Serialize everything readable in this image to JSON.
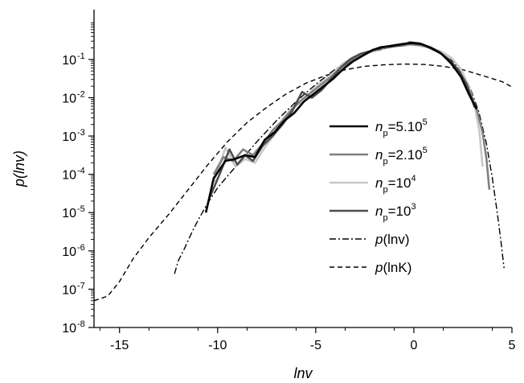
{
  "chart_data": {
    "type": "line",
    "title": "",
    "xlabel": "lnv",
    "ylabel": "p(lnv)",
    "xlim": [
      -16.3,
      5.0
    ],
    "ylim_log10": [
      -8,
      0.3
    ],
    "y_scale": "log",
    "grid": false,
    "legend_position": "right",
    "x_ticks": [
      -15,
      -10,
      -5,
      0,
      5
    ],
    "x_tick_labels": [
      "-15",
      "-10",
      "-5",
      "0",
      "5"
    ],
    "y_ticks_log10": [
      -8,
      -7,
      -6,
      -5,
      -4,
      -3,
      -2,
      -1
    ],
    "y_tick_bases": [
      "10",
      "10",
      "10",
      "10",
      "10",
      "10",
      "10",
      "10"
    ],
    "y_tick_exps": [
      "-8",
      "-7",
      "-6",
      "-5",
      "-4",
      "-3",
      "-2",
      "-1"
    ],
    "series": [
      {
        "name": "n_p=5.10^5",
        "legend": {
          "base": "n",
          "sub": "p",
          "rest": "=5.10",
          "sup": "5"
        },
        "color": "#000000",
        "width": 2.6,
        "dash": "",
        "points": [
          [
            -10.6,
            -5.0
          ],
          [
            -10.2,
            -4.1
          ],
          [
            -9.6,
            -3.65
          ],
          [
            -9.1,
            -3.6
          ],
          [
            -8.6,
            -3.5
          ],
          [
            -8.1,
            -3.55
          ],
          [
            -7.6,
            -3.1
          ],
          [
            -7.1,
            -2.9
          ],
          [
            -6.6,
            -2.6
          ],
          [
            -6.1,
            -2.4
          ],
          [
            -5.6,
            -2.1
          ],
          [
            -5.1,
            -1.9
          ],
          [
            -4.6,
            -1.7
          ],
          [
            -4.1,
            -1.5
          ],
          [
            -3.6,
            -1.25
          ],
          [
            -3.1,
            -1.05
          ],
          [
            -2.6,
            -0.9
          ],
          [
            -2.1,
            -0.75
          ],
          [
            -1.6,
            -0.68
          ],
          [
            -1.1,
            -0.64
          ],
          [
            -0.6,
            -0.6
          ],
          [
            -0.1,
            -0.57
          ],
          [
            0.4,
            -0.6
          ],
          [
            0.9,
            -0.7
          ],
          [
            1.4,
            -0.85
          ],
          [
            1.9,
            -1.1
          ],
          [
            2.4,
            -1.45
          ],
          [
            2.8,
            -1.9
          ],
          [
            3.2,
            -2.3
          ]
        ]
      },
      {
        "name": "n_p=2.10^5",
        "legend": {
          "base": "n",
          "sub": "p",
          "rest": "=2.10",
          "sup": "5"
        },
        "color": "#808080",
        "width": 2.6,
        "dash": "",
        "points": [
          [
            -10.2,
            -4.0
          ],
          [
            -9.7,
            -3.55
          ],
          [
            -9.2,
            -3.65
          ],
          [
            -8.7,
            -3.35
          ],
          [
            -8.2,
            -3.5
          ],
          [
            -7.7,
            -3.2
          ],
          [
            -7.2,
            -2.85
          ],
          [
            -6.7,
            -2.6
          ],
          [
            -6.2,
            -2.3
          ],
          [
            -5.7,
            -2.05
          ],
          [
            -5.2,
            -1.85
          ],
          [
            -4.7,
            -1.65
          ],
          [
            -4.2,
            -1.45
          ],
          [
            -3.7,
            -1.2
          ],
          [
            -3.2,
            -1.05
          ],
          [
            -2.7,
            -0.9
          ],
          [
            -2.2,
            -0.8
          ],
          [
            -1.7,
            -0.72
          ],
          [
            -1.2,
            -0.68
          ],
          [
            -0.7,
            -0.63
          ],
          [
            -0.2,
            -0.6
          ],
          [
            0.3,
            -0.62
          ],
          [
            0.8,
            -0.68
          ],
          [
            1.3,
            -0.8
          ],
          [
            1.8,
            -1.05
          ],
          [
            2.3,
            -1.35
          ],
          [
            2.8,
            -1.8
          ],
          [
            3.2,
            -2.3
          ],
          [
            3.5,
            -2.9
          ],
          [
            3.7,
            -3.6
          ],
          [
            3.85,
            -4.4
          ]
        ]
      },
      {
        "name": "n_p=10^4",
        "legend": {
          "base": "n",
          "sub": "p",
          "rest": "=10",
          "sup": "4"
        },
        "color": "#c8c8c8",
        "width": 2.6,
        "dash": "",
        "points": [
          [
            -10.2,
            -4.2
          ],
          [
            -9.6,
            -3.3
          ],
          [
            -9.1,
            -3.8
          ],
          [
            -8.6,
            -3.6
          ],
          [
            -8.1,
            -3.7
          ],
          [
            -7.6,
            -3.3
          ],
          [
            -7.1,
            -2.95
          ],
          [
            -6.6,
            -2.5
          ],
          [
            -6.1,
            -2.2
          ],
          [
            -5.6,
            -2.1
          ],
          [
            -5.1,
            -1.75
          ],
          [
            -4.6,
            -1.55
          ],
          [
            -4.1,
            -1.35
          ],
          [
            -3.6,
            -1.1
          ],
          [
            -3.1,
            -0.95
          ],
          [
            -2.6,
            -0.9
          ],
          [
            -2.1,
            -0.78
          ],
          [
            -1.6,
            -0.7
          ],
          [
            -1.1,
            -0.65
          ],
          [
            -0.6,
            -0.62
          ],
          [
            -0.1,
            -0.62
          ],
          [
            0.4,
            -0.65
          ],
          [
            0.9,
            -0.7
          ],
          [
            1.4,
            -0.8
          ],
          [
            1.9,
            -0.95
          ],
          [
            2.4,
            -1.25
          ],
          [
            2.8,
            -1.7
          ],
          [
            3.1,
            -2.2
          ],
          [
            3.35,
            -2.9
          ],
          [
            3.5,
            -3.8
          ]
        ]
      },
      {
        "name": "n_p=10^3",
        "legend": {
          "base": "n",
          "sub": "p",
          "rest": "=10",
          "sup": "3"
        },
        "color": "#4d4d4d",
        "width": 2.6,
        "dash": "",
        "points": [
          [
            -10.4,
            -4.6
          ],
          [
            -9.9,
            -4.0
          ],
          [
            -9.4,
            -3.35
          ],
          [
            -9.0,
            -3.75
          ],
          [
            -8.6,
            -3.5
          ],
          [
            -8.2,
            -3.65
          ],
          [
            -7.7,
            -3.25
          ],
          [
            -7.2,
            -3.0
          ],
          [
            -6.7,
            -2.7
          ],
          [
            -6.2,
            -2.35
          ],
          [
            -5.7,
            -1.85
          ],
          [
            -5.2,
            -2.0
          ],
          [
            -4.7,
            -1.8
          ],
          [
            -4.2,
            -1.5
          ],
          [
            -3.7,
            -1.2
          ],
          [
            -3.2,
            -0.98
          ],
          [
            -2.7,
            -0.85
          ],
          [
            -2.2,
            -0.78
          ],
          [
            -1.7,
            -0.68
          ],
          [
            -1.2,
            -0.66
          ],
          [
            -0.7,
            -0.64
          ],
          [
            -0.2,
            -0.55
          ],
          [
            0.3,
            -0.58
          ],
          [
            0.8,
            -0.7
          ],
          [
            1.3,
            -0.82
          ],
          [
            1.8,
            -1.0
          ],
          [
            2.3,
            -1.3
          ],
          [
            2.7,
            -1.65
          ],
          [
            3.1,
            -2.25
          ]
        ]
      },
      {
        "name": "p(lnv)",
        "legend": {
          "base": "p",
          "sub": "",
          "rest": "(lnv)",
          "sup": ""
        },
        "color": "#000000",
        "width": 1.4,
        "dash": "8,3,2,3",
        "points": [
          [
            -12.2,
            -6.6
          ],
          [
            -12.0,
            -6.25
          ],
          [
            -11.7,
            -5.95
          ],
          [
            -11.3,
            -5.5
          ],
          [
            -11.0,
            -5.2
          ],
          [
            -10.5,
            -4.75
          ],
          [
            -10.0,
            -4.35
          ],
          [
            -9.0,
            -3.75
          ],
          [
            -8.0,
            -3.15
          ],
          [
            -7.0,
            -2.6
          ],
          [
            -6.0,
            -2.1
          ],
          [
            -5.0,
            -1.65
          ],
          [
            -4.0,
            -1.25
          ],
          [
            -3.0,
            -0.95
          ],
          [
            -2.0,
            -0.78
          ],
          [
            -1.0,
            -0.66
          ],
          [
            0.0,
            -0.62
          ],
          [
            1.0,
            -0.72
          ],
          [
            2.0,
            -1.05
          ],
          [
            2.8,
            -1.65
          ],
          [
            3.3,
            -2.35
          ],
          [
            3.7,
            -3.2
          ],
          [
            4.0,
            -4.1
          ],
          [
            4.25,
            -5.0
          ],
          [
            4.45,
            -5.8
          ],
          [
            4.6,
            -6.45
          ]
        ]
      },
      {
        "name": "p(lnK)",
        "legend": {
          "base": "p",
          "sub": "",
          "rest": "(lnK)",
          "sup": ""
        },
        "color": "#000000",
        "width": 1.4,
        "dash": "6,4",
        "points": [
          [
            -16.3,
            -7.3
          ],
          [
            -15.6,
            -7.18
          ],
          [
            -15.0,
            -6.8
          ],
          [
            -14.3,
            -6.2
          ],
          [
            -13.5,
            -5.65
          ],
          [
            -12.5,
            -5.05
          ],
          [
            -11.5,
            -4.4
          ],
          [
            -10.5,
            -3.75
          ],
          [
            -9.5,
            -3.15
          ],
          [
            -8.5,
            -2.65
          ],
          [
            -7.5,
            -2.25
          ],
          [
            -6.5,
            -1.9
          ],
          [
            -5.5,
            -1.62
          ],
          [
            -4.5,
            -1.42
          ],
          [
            -3.5,
            -1.27
          ],
          [
            -2.5,
            -1.18
          ],
          [
            -1.5,
            -1.14
          ],
          [
            -0.5,
            -1.12
          ],
          [
            0.5,
            -1.13
          ],
          [
            1.5,
            -1.18
          ],
          [
            2.5,
            -1.27
          ],
          [
            3.5,
            -1.42
          ],
          [
            4.5,
            -1.58
          ],
          [
            5.0,
            -1.72
          ]
        ]
      }
    ]
  }
}
